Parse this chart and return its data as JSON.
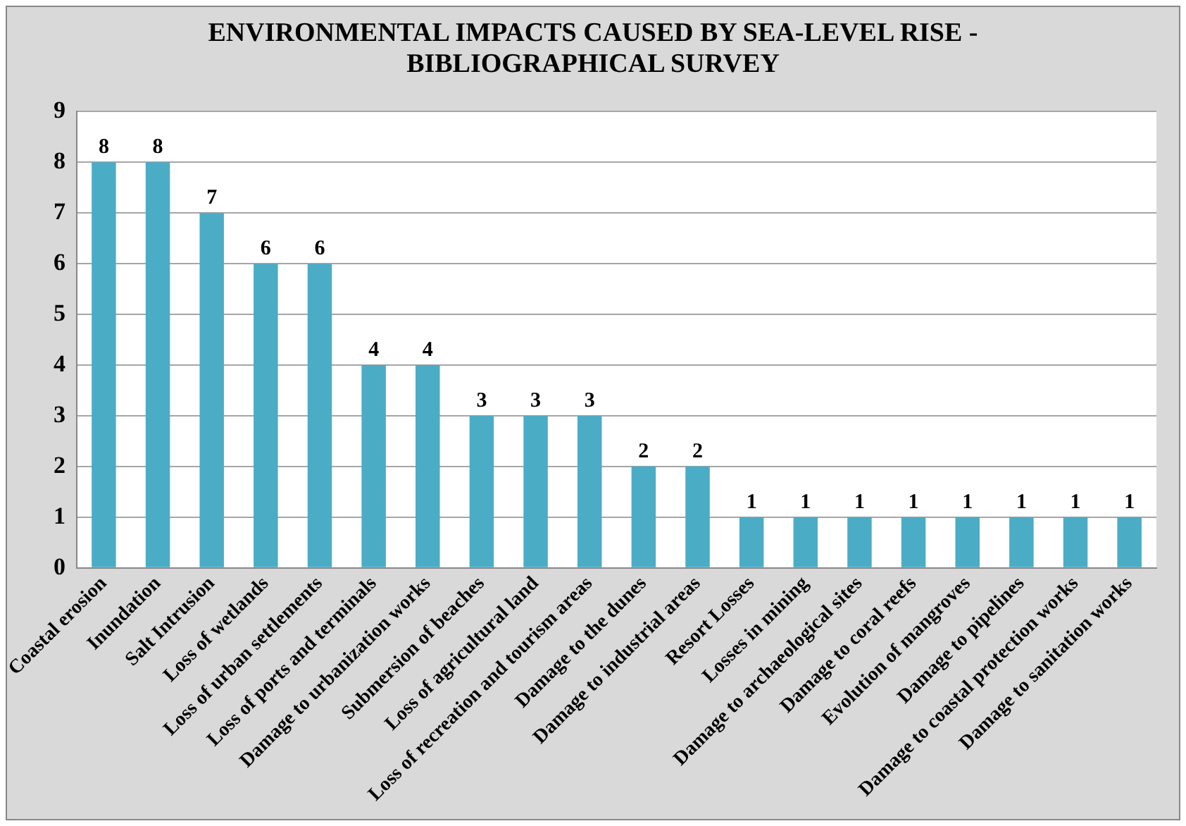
{
  "chart_data": {
    "type": "bar",
    "title": "ENVIRONMENTAL IMPACTS CAUSED BY SEA-LEVEL RISE - BIBLIOGRAPHICAL SURVEY",
    "categories": [
      "Coastal erosion",
      "Inundation",
      "Salt Intrusion",
      "Loss of wetlands",
      "Loss of urban settlements",
      "Loss of ports and terminals",
      "Damage to urbanization works",
      "Submersion of beaches",
      "Loss of agricultural land",
      "Loss of recreation and tourism areas",
      "Damage to the dunes",
      "Damage to industrial areas",
      "Resort Losses",
      "Losses in mining",
      "Damage to archaeological sites",
      "Damage to coral reefs",
      "Evolution of mangroves",
      "Damage to pipelines",
      "Damage to coastal protection works",
      "Damage to sanitation works"
    ],
    "values": [
      8,
      8,
      7,
      6,
      6,
      4,
      4,
      3,
      3,
      3,
      2,
      2,
      1,
      1,
      1,
      1,
      1,
      1,
      1,
      1
    ],
    "color": "#4bacc6",
    "ylim": [
      0,
      9
    ],
    "yticks": [
      0,
      1,
      2,
      3,
      4,
      5,
      6,
      7,
      8,
      9
    ],
    "grid": "y",
    "data_labels": true
  }
}
